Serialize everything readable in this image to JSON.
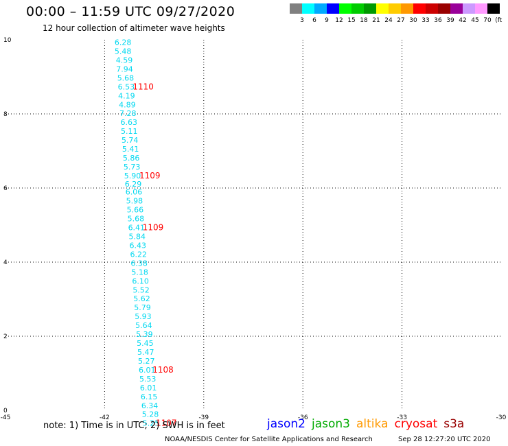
{
  "header": {
    "title": "00:00 – 11:59 UTC 09/27/2020",
    "subtitle": "12 hour collection of altimeter wave heights"
  },
  "color_scale": {
    "colors": [
      "#808080",
      "#00ffff",
      "#00aaff",
      "#0000ff",
      "#00ff00",
      "#00cc00",
      "#009900",
      "#ffff00",
      "#ffcc00",
      "#ff9900",
      "#ff0000",
      "#cc0000",
      "#990000",
      "#990099",
      "#cc99ff",
      "#ff99ff",
      "#000000"
    ],
    "labels": [
      "3",
      "6",
      "9",
      "12",
      "15",
      "18",
      "21",
      "24",
      "27",
      "30",
      "33",
      "36",
      "39",
      "42",
      "45",
      "70",
      "(ft)"
    ]
  },
  "axes": {
    "x_ticks": [
      "-45",
      "-42",
      "-39",
      "-36",
      "-33",
      "-30"
    ],
    "y_ticks": [
      "0",
      "2",
      "4",
      "6",
      "8",
      "10"
    ],
    "x_range": [
      -45,
      -30
    ],
    "y_range": [
      0,
      10
    ]
  },
  "observations": [
    {
      "lon": -41.7,
      "lat": 9.86,
      "swh": "6.28"
    },
    {
      "lon": -41.7,
      "lat": 9.62,
      "swh": "5.48"
    },
    {
      "lon": -41.66,
      "lat": 9.38,
      "swh": "4.59"
    },
    {
      "lon": -41.65,
      "lat": 9.14,
      "swh": "7.94"
    },
    {
      "lon": -41.62,
      "lat": 8.9,
      "swh": "5.68"
    },
    {
      "lon": -41.6,
      "lat": 8.66,
      "swh": "6.53"
    },
    {
      "lon": -41.59,
      "lat": 8.42,
      "swh": "4.19"
    },
    {
      "lon": -41.57,
      "lat": 8.18,
      "swh": "4.89"
    },
    {
      "lon": -41.55,
      "lat": 7.94,
      "swh": "7.28"
    },
    {
      "lon": -41.52,
      "lat": 7.7,
      "swh": "6.63"
    },
    {
      "lon": -41.51,
      "lat": 7.46,
      "swh": "5.11"
    },
    {
      "lon": -41.49,
      "lat": 7.22,
      "swh": "5.74"
    },
    {
      "lon": -41.47,
      "lat": 6.98,
      "swh": "5.41"
    },
    {
      "lon": -41.45,
      "lat": 6.74,
      "swh": "5.86"
    },
    {
      "lon": -41.43,
      "lat": 6.5,
      "swh": "5.73"
    },
    {
      "lon": -41.41,
      "lat": 6.26,
      "swh": "5.90"
    },
    {
      "lon": -41.39,
      "lat": 6.04,
      "swh": "6.29"
    },
    {
      "lon": -41.37,
      "lat": 5.82,
      "swh": "6.06"
    },
    {
      "lon": -41.35,
      "lat": 5.58,
      "swh": "5.98"
    },
    {
      "lon": -41.33,
      "lat": 5.34,
      "swh": "5.66"
    },
    {
      "lon": -41.31,
      "lat": 5.1,
      "swh": "5.68"
    },
    {
      "lon": -41.29,
      "lat": 4.86,
      "swh": "6.41"
    },
    {
      "lon": -41.27,
      "lat": 4.62,
      "swh": "5.84"
    },
    {
      "lon": -41.25,
      "lat": 4.38,
      "swh": "6.43"
    },
    {
      "lon": -41.23,
      "lat": 4.14,
      "swh": "6.22"
    },
    {
      "lon": -41.21,
      "lat": 3.9,
      "swh": "6.38"
    },
    {
      "lon": -41.19,
      "lat": 3.66,
      "swh": "5.18"
    },
    {
      "lon": -41.17,
      "lat": 3.42,
      "swh": "6.10"
    },
    {
      "lon": -41.15,
      "lat": 3.18,
      "swh": "5.52"
    },
    {
      "lon": -41.13,
      "lat": 2.94,
      "swh": "5.62"
    },
    {
      "lon": -41.11,
      "lat": 2.7,
      "swh": "5.79"
    },
    {
      "lon": -41.09,
      "lat": 2.46,
      "swh": "5.93"
    },
    {
      "lon": -41.07,
      "lat": 2.22,
      "swh": "5.64"
    },
    {
      "lon": -41.05,
      "lat": 1.98,
      "swh": "5.39"
    },
    {
      "lon": -41.03,
      "lat": 1.74,
      "swh": "5.45"
    },
    {
      "lon": -41.01,
      "lat": 1.5,
      "swh": "5.47"
    },
    {
      "lon": -40.99,
      "lat": 1.26,
      "swh": "5.27"
    },
    {
      "lon": -40.97,
      "lat": 1.02,
      "swh": "6.01"
    },
    {
      "lon": -40.95,
      "lat": 0.78,
      "swh": "5.53"
    },
    {
      "lon": -40.93,
      "lat": 0.54,
      "swh": "6.01"
    },
    {
      "lon": -40.91,
      "lat": 0.3,
      "swh": "6.15"
    },
    {
      "lon": -40.89,
      "lat": 0.06,
      "swh": "6.34"
    },
    {
      "lon": -40.87,
      "lat": -0.18,
      "swh": "5.28"
    },
    {
      "lon": -40.85,
      "lat": -0.42,
      "swh": "5.25"
    }
  ],
  "pass_times": [
    {
      "lon": -41.15,
      "lat": 8.66,
      "label": "1110"
    },
    {
      "lon": -40.95,
      "lat": 6.26,
      "label": "1109"
    },
    {
      "lon": -40.85,
      "lat": 4.86,
      "label": "1109"
    },
    {
      "lon": -40.55,
      "lat": 1.02,
      "label": "1108"
    },
    {
      "lon": -40.45,
      "lat": -0.42,
      "label": "1107"
    }
  ],
  "footer": {
    "note": "note:  1) Time is in UTC;  2) SWH is in feet",
    "credit": "NOAA/NESDIS Center for Satellite Applications and Research",
    "timestamp": "Sep 28 12:27:20 UTC 2020"
  },
  "legend": {
    "items": [
      {
        "label": "jason2",
        "color": "#0000ff"
      },
      {
        "label": "jason3",
        "color": "#00aa00"
      },
      {
        "label": "altika",
        "color": "#ff9900"
      },
      {
        "label": "cryosat",
        "color": "#ff0000"
      },
      {
        "label": "s3a",
        "color": "#990000"
      }
    ]
  }
}
